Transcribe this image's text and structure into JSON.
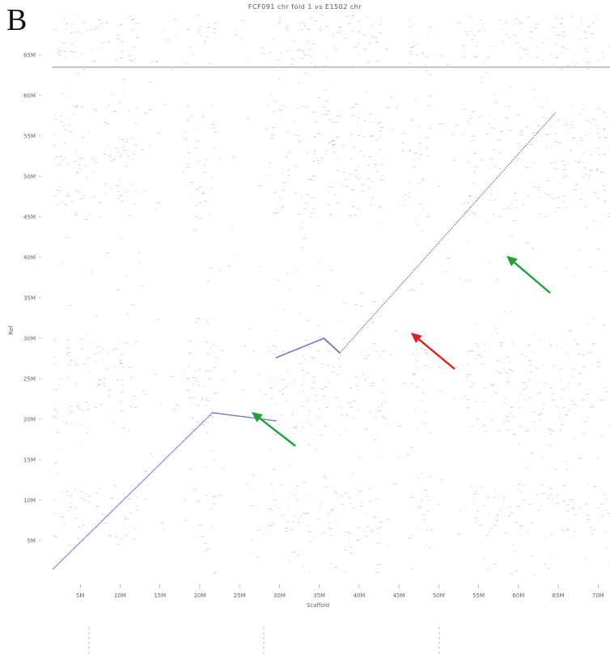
{
  "figure": {
    "panel_letter": "B",
    "title": "FCF091 chr fold 1 vs E1502 chr"
  },
  "chart_data": {
    "type": "scatter",
    "title": "FCF091 chr fold 1 vs E1502 chr",
    "xlabel": "Scaffold",
    "ylabel": "Ref",
    "x_unit_ticks": [
      "5M",
      "10M",
      "15M",
      "20M",
      "25M",
      "30M",
      "35M",
      "40M",
      "45M",
      "50M",
      "55M",
      "60M",
      "65M",
      "70M"
    ],
    "x_tick_values": [
      5,
      10,
      15,
      20,
      25,
      30,
      35,
      40,
      45,
      50,
      55,
      60,
      65,
      70
    ],
    "y_unit_ticks": [
      "5M",
      "10M",
      "15M",
      "20M",
      "25M",
      "30M",
      "35M",
      "40M",
      "45M",
      "50M",
      "55M",
      "60M",
      "65M"
    ],
    "y_tick_values": [
      5,
      10,
      15,
      20,
      25,
      30,
      35,
      40,
      45,
      50,
      55,
      60,
      65
    ],
    "xlim": [
      0,
      71.5
    ],
    "ylim": [
      0,
      70
    ],
    "alignment_segments": [
      {
        "x": [
          1.5,
          21.5
        ],
        "y": [
          1.5,
          20.8
        ]
      },
      {
        "x": [
          21.5,
          29.5
        ],
        "y": [
          20.8,
          19.8
        ]
      },
      {
        "x": [
          29.5,
          35.5
        ],
        "y": [
          27.6,
          30.0
        ]
      },
      {
        "x": [
          35.5,
          37.5
        ],
        "y": [
          30.0,
          28.2
        ]
      },
      {
        "x": [
          37.5,
          64.5
        ],
        "y": [
          28.2,
          57.8
        ]
      }
    ],
    "horizontal_blocks": [
      {
        "x": [
          1.5,
          71.5
        ],
        "y": 63.5
      }
    ],
    "dense_regions_x": [
      [
        1.5,
        8
      ],
      [
        8,
        12
      ],
      [
        18,
        22
      ],
      [
        28.5,
        36
      ],
      [
        36,
        43
      ],
      [
        46,
        49
      ],
      [
        53,
        71.5
      ]
    ],
    "dense_regions_y": [
      [
        63.5,
        70
      ],
      [
        45,
        59
      ],
      [
        18,
        30
      ],
      [
        5,
        12
      ]
    ],
    "annotations": [
      {
        "type": "arrow",
        "color": "#1fa23c",
        "tip": [
          58.5,
          40.2
        ],
        "tail": [
          64.0,
          35.6
        ]
      },
      {
        "type": "arrow",
        "color": "#e02020",
        "tip": [
          46.5,
          30.7
        ],
        "tail": [
          52.0,
          26.2
        ]
      },
      {
        "type": "arrow",
        "color": "#1fa23c",
        "tip": [
          26.5,
          20.9
        ],
        "tail": [
          32.0,
          16.7
        ]
      }
    ],
    "grid": false,
    "colors": {
      "dots": "#6a6ad8",
      "green_arrow": "#1fa23c",
      "red_arrow": "#e02020"
    }
  }
}
